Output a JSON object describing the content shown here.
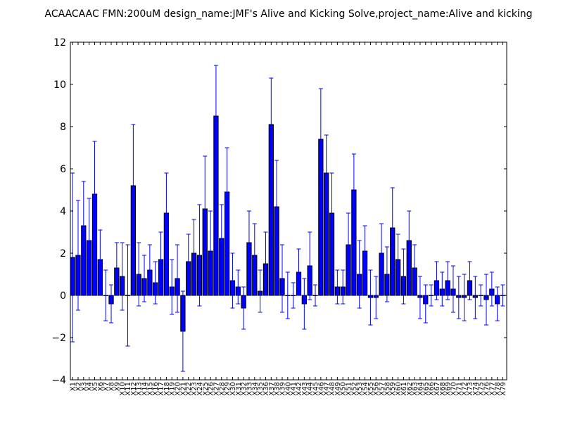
{
  "chart_data": {
    "type": "bar",
    "title": "ACAACAAC  FMN:200uM  design_name:JMF's Alive and Kicking Solve,project_name:Alive and kicking",
    "xlabel": "",
    "ylabel": "",
    "ylim": [
      -4,
      12
    ],
    "yticks": [
      "−4",
      "−2",
      "0",
      "2",
      "4",
      "6",
      "8",
      "10",
      "12"
    ],
    "ytick_values": [
      -4,
      -2,
      0,
      2,
      4,
      6,
      8,
      10,
      12
    ],
    "grid": false,
    "bar_color": "#0000ff",
    "error_color": "#0000ff",
    "categories": [
      "X1",
      "X2",
      "X3",
      "X4",
      "X5",
      "X6",
      "X7",
      "X8",
      "X9",
      "X10",
      "X11",
      "X12",
      "X13",
      "X14",
      "X15",
      "X16",
      "X17",
      "X18",
      "X19",
      "X20",
      "X21",
      "X22",
      "X23",
      "X24",
      "X25",
      "X26",
      "X27",
      "X28",
      "X29",
      "X30",
      "X31",
      "X32",
      "X33",
      "X34",
      "X35",
      "X36",
      "X37",
      "X38",
      "X39",
      "X40",
      "X41",
      "X42",
      "X43",
      "X44",
      "X45",
      "X46",
      "X47",
      "X48",
      "X49",
      "X50",
      "X51",
      "X52",
      "X53",
      "X54",
      "X55",
      "X56",
      "X57",
      "X58",
      "X59",
      "X60",
      "X61",
      "X62",
      "X63",
      "X64",
      "X65",
      "X66",
      "X67",
      "X68",
      "X69",
      "X70",
      "X71",
      "X72",
      "X73",
      "X74",
      "X75",
      "X76",
      "X77",
      "X78",
      "X79"
    ],
    "values": [
      1.8,
      1.9,
      3.3,
      2.6,
      4.8,
      1.7,
      0.0,
      -0.4,
      1.3,
      0.9,
      0.0,
      5.2,
      1.0,
      0.8,
      1.2,
      0.6,
      1.7,
      3.9,
      0.4,
      0.8,
      -1.7,
      1.6,
      2.0,
      1.9,
      4.1,
      2.1,
      8.5,
      2.7,
      4.9,
      0.7,
      0.4,
      -0.6,
      2.5,
      1.9,
      0.2,
      1.5,
      8.1,
      4.2,
      0.8,
      0.0,
      0.0,
      1.1,
      -0.4,
      1.4,
      0.0,
      7.4,
      5.8,
      3.9,
      0.4,
      0.4,
      2.4,
      5.0,
      1.0,
      2.1,
      -0.1,
      -0.1,
      2.0,
      1.0,
      3.2,
      1.7,
      0.9,
      2.6,
      1.3,
      -0.1,
      -0.4,
      0.0,
      0.7,
      0.3,
      0.7,
      0.3,
      -0.1,
      -0.1,
      0.7,
      -0.1,
      0.0,
      -0.2,
      0.3,
      -0.4,
      0.0
    ],
    "errors": [
      4.0,
      2.6,
      2.1,
      2.0,
      2.5,
      1.4,
      1.2,
      0.9,
      1.2,
      1.6,
      2.4,
      2.9,
      1.5,
      1.1,
      1.2,
      1.0,
      1.3,
      1.9,
      1.3,
      1.6,
      1.9,
      1.3,
      1.6,
      2.4,
      2.5,
      1.9,
      2.4,
      1.6,
      2.1,
      1.3,
      0.8,
      1.0,
      1.5,
      1.5,
      1.0,
      1.5,
      2.2,
      2.2,
      1.6,
      1.1,
      0.6,
      1.1,
      1.2,
      1.6,
      0.5,
      2.4,
      1.8,
      1.9,
      0.8,
      0.8,
      1.5,
      1.7,
      1.6,
      1.2,
      1.3,
      1.0,
      1.4,
      1.3,
      1.9,
      1.2,
      1.3,
      1.4,
      1.1,
      1.0,
      0.9,
      0.5,
      0.9,
      0.8,
      0.9,
      1.1,
      1.0,
      1.1,
      0.9,
      1.0,
      0.5,
      1.2,
      0.8,
      0.8,
      0.5
    ]
  }
}
